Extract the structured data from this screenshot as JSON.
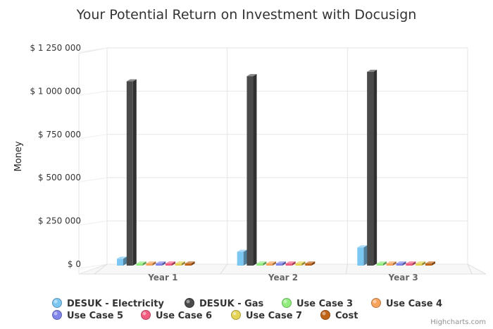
{
  "chart_data": {
    "type": "bar",
    "title": "Your Potential Return on Investment with Docusign",
    "xlabel": "",
    "ylabel": "Money",
    "categories": [
      "Year 1",
      "Year 2",
      "Year 3"
    ],
    "ylim": [
      0,
      1250000
    ],
    "yticks": [
      {
        "value": 0,
        "label": "$ 0"
      },
      {
        "value": 250000,
        "label": "$ 250 000"
      },
      {
        "value": 500000,
        "label": "$ 500 000"
      },
      {
        "value": 750000,
        "label": "$ 750 000"
      },
      {
        "value": 1000000,
        "label": "$ 1 000 000"
      },
      {
        "value": 1250000,
        "label": "$ 1 250 000"
      }
    ],
    "grid": true,
    "legend_position": "bottom",
    "series": [
      {
        "name": "DESUK - Electricity",
        "color": "#7cc6f2",
        "values": [
          60000,
          100000,
          125000
        ]
      },
      {
        "name": "DESUK - Gas",
        "color": "#4a4a4a",
        "values": [
          1085000,
          1115000,
          1140000
        ]
      },
      {
        "name": "Use Case 3",
        "color": "#90ed7d",
        "values": [
          0,
          0,
          0
        ]
      },
      {
        "name": "Use Case 4",
        "color": "#f7a35c",
        "values": [
          0,
          0,
          0
        ]
      },
      {
        "name": "Use Case 5",
        "color": "#8085e9",
        "values": [
          0,
          0,
          0
        ]
      },
      {
        "name": "Use Case 6",
        "color": "#f15c80",
        "values": [
          0,
          0,
          0
        ]
      },
      {
        "name": "Use Case 7",
        "color": "#e4d354",
        "values": [
          0,
          0,
          0
        ]
      },
      {
        "name": "Cost",
        "color": "#c0641a",
        "values": [
          0,
          0,
          0
        ]
      }
    ],
    "credits": "Highcharts.com"
  }
}
